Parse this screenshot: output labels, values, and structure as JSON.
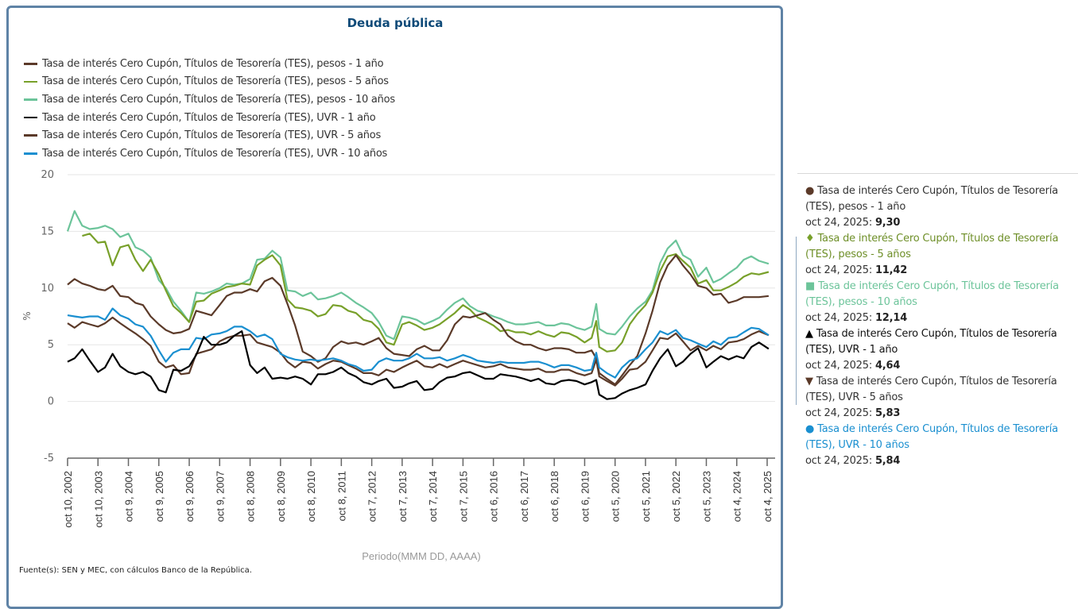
{
  "panel": {
    "title": "Deuda pública",
    "source": "Fuente(s): SEN y MEC, con cálculos Banco de la República."
  },
  "legend": [
    {
      "label": "Tasa de interés Cero Cupón, Títulos de Tesorería (TES), pesos - 1 año",
      "color": "#5b3a29"
    },
    {
      "label": "Tasa de interés Cero Cupón, Títulos de Tesorería (TES), pesos - 5 años",
      "color": "#78a02a"
    },
    {
      "label": "Tasa de interés Cero Cupón, Títulos de Tesorería (TES), pesos - 10 años",
      "color": "#6cc49a"
    },
    {
      "label": "Tasa de interés Cero Cupón, Títulos de Tesorería (TES), UVR - 1 año",
      "color": "#000000"
    },
    {
      "label": "Tasa de interés Cero Cupón, Títulos de Tesorería (TES), UVR - 5 años",
      "color": "#5b3a29"
    },
    {
      "label": "Tasa de interés Cero Cupón, Títulos de Tesorería (TES), UVR - 10 años",
      "color": "#1a8fd0"
    }
  ],
  "tooltip": {
    "items": [
      {
        "marker": "●",
        "name_line1": "Tasa de interés Cero Cupón, Títulos de Tesorería",
        "name_line2": "(TES), pesos - 1 año",
        "date": "oct 24, 2025:",
        "value": "9,30",
        "color": "#333333",
        "marker_color": "#5b3a29"
      },
      {
        "marker": "♦",
        "name_line1": "Tasa de interés Cero Cupón, Títulos de Tesorería",
        "name_line2": "(TES), pesos - 5 años",
        "date": "oct 24, 2025:",
        "value": "11,42",
        "color": "#6e8f28",
        "marker_color": "#78a02a"
      },
      {
        "marker": "■",
        "name_line1": "Tasa de interés Cero Cupón, Títulos de Tesorería",
        "name_line2": "(TES), pesos - 10 años",
        "date": "oct 24, 2025:",
        "value": "12,14",
        "color": "#6cc49a",
        "marker_color": "#6cc49a"
      },
      {
        "marker": "▲",
        "name_line1": "Tasa de interés Cero Cupón, Títulos de Tesorería",
        "name_line2": "(TES), UVR - 1 año",
        "date": "oct 24, 2025:",
        "value": "4,64",
        "color": "#111111",
        "marker_color": "#000000"
      },
      {
        "marker": "▼",
        "name_line1": "Tasa de interés Cero Cupón, Títulos de Tesorería",
        "name_line2": "(TES), UVR - 5 años",
        "date": "oct 24, 2025:",
        "value": "5,83",
        "color": "#333333",
        "marker_color": "#5b3a29"
      },
      {
        "marker": "●",
        "name_line1": "Tasa de interés Cero Cupón, Títulos de Tesorería",
        "name_line2": "(TES), UVR - 10 años",
        "date": "oct 24, 2025:",
        "value": "5,84",
        "color": "#1a8fd0",
        "marker_color": "#1a8fd0"
      }
    ]
  },
  "chart_data": {
    "type": "line",
    "title": "Deuda pública",
    "xlabel": "Periodo(MMM DD, AAAA)",
    "ylabel": "%",
    "ylim": [
      -5,
      20
    ],
    "yticks": [
      -5,
      0,
      5,
      10,
      15,
      20
    ],
    "grid": true,
    "legend_position": "top-left",
    "xlim": [
      2002.77,
      2025.82
    ],
    "xticks": [
      {
        "label": "oct 10, 2002",
        "x": 2002.77
      },
      {
        "label": "oct 10, 2003",
        "x": 2003.77
      },
      {
        "label": "oct 9, 2004",
        "x": 2004.77
      },
      {
        "label": "oct 9, 2005",
        "x": 2005.77
      },
      {
        "label": "oct 9, 2006",
        "x": 2006.77
      },
      {
        "label": "oct 9, 2007",
        "x": 2007.77
      },
      {
        "label": "oct 8, 2008",
        "x": 2008.77
      },
      {
        "label": "oct 8, 2009",
        "x": 2009.77
      },
      {
        "label": "oct 8, 2010",
        "x": 2010.77
      },
      {
        "label": "oct 8, 2011",
        "x": 2011.77
      },
      {
        "label": "oct 7, 2012",
        "x": 2012.77
      },
      {
        "label": "oct 7, 2013",
        "x": 2013.77
      },
      {
        "label": "oct 7, 2014",
        "x": 2014.77
      },
      {
        "label": "oct 7, 2015",
        "x": 2015.77
      },
      {
        "label": "oct 6, 2016",
        "x": 2016.77
      },
      {
        "label": "oct 6, 2017",
        "x": 2017.77
      },
      {
        "label": "oct 6, 2018",
        "x": 2018.77
      },
      {
        "label": "oct 6, 2019",
        "x": 2019.77
      },
      {
        "label": "oct 5, 2020",
        "x": 2020.77
      },
      {
        "label": "oct 5, 2021",
        "x": 2021.77
      },
      {
        "label": "oct 5, 2022",
        "x": 2022.77
      },
      {
        "label": "oct 5, 2023",
        "x": 2023.77
      },
      {
        "label": "oct 4, 2024",
        "x": 2024.77
      },
      {
        "label": "oct 4, 2025",
        "x": 2025.77
      }
    ],
    "x": [
      2002.77,
      2003.0,
      2003.25,
      2003.5,
      2003.77,
      2004.0,
      2004.25,
      2004.5,
      2004.77,
      2005.0,
      2005.25,
      2005.5,
      2005.77,
      2006.0,
      2006.25,
      2006.5,
      2006.77,
      2007.0,
      2007.25,
      2007.5,
      2007.77,
      2008.0,
      2008.25,
      2008.5,
      2008.77,
      2009.0,
      2009.25,
      2009.5,
      2009.77,
      2010.0,
      2010.25,
      2010.5,
      2010.77,
      2011.0,
      2011.25,
      2011.5,
      2011.77,
      2012.0,
      2012.25,
      2012.5,
      2012.77,
      2013.0,
      2013.25,
      2013.5,
      2013.77,
      2014.0,
      2014.25,
      2014.5,
      2014.77,
      2015.0,
      2015.25,
      2015.5,
      2015.77,
      2016.0,
      2016.25,
      2016.5,
      2016.77,
      2017.0,
      2017.25,
      2017.5,
      2017.77,
      2018.0,
      2018.25,
      2018.5,
      2018.77,
      2019.0,
      2019.25,
      2019.5,
      2019.77,
      2020.0,
      2020.15,
      2020.25,
      2020.5,
      2020.77,
      2021.0,
      2021.25,
      2021.5,
      2021.77,
      2022.0,
      2022.25,
      2022.5,
      2022.77,
      2023.0,
      2023.25,
      2023.5,
      2023.77,
      2024.0,
      2024.25,
      2024.5,
      2024.77,
      2025.0,
      2025.25,
      2025.5,
      2025.82
    ],
    "series": [
      {
        "name": "Tasa de interés Cero Cupón, Títulos de Tesorería (TES), pesos - 1 año",
        "color": "#5b3a29",
        "values": [
          10.3,
          10.8,
          10.4,
          10.2,
          9.9,
          9.8,
          10.2,
          9.3,
          9.2,
          8.7,
          8.5,
          7.5,
          6.8,
          6.3,
          6.0,
          6.1,
          6.4,
          8.0,
          7.8,
          7.6,
          8.5,
          9.3,
          9.6,
          9.6,
          9.9,
          9.7,
          10.6,
          10.9,
          10.2,
          8.6,
          6.7,
          4.4,
          4.0,
          3.5,
          3.8,
          4.8,
          5.3,
          5.1,
          5.2,
          5.0,
          5.3,
          5.6,
          4.7,
          4.2,
          4.1,
          4.0,
          4.6,
          4.9,
          4.5,
          4.5,
          5.4,
          6.8,
          7.5,
          7.4,
          7.6,
          7.8,
          7.2,
          6.8,
          5.8,
          5.3,
          5.0,
          5.0,
          4.7,
          4.5,
          4.7,
          4.7,
          4.6,
          4.3,
          4.3,
          4.5,
          3.8,
          2.5,
          2.0,
          1.5,
          2.3,
          3.2,
          4.0,
          6.0,
          8.0,
          10.5,
          12.0,
          12.9,
          12.0,
          11.2,
          10.2,
          10.0,
          9.4,
          9.5,
          8.7,
          8.9,
          9.2,
          9.2,
          9.2,
          9.3
        ]
      },
      {
        "name": "Tasa de interés Cero Cupón, Títulos de Tesorería (TES), pesos - 5 años",
        "color": "#78a02a",
        "values": [
          null,
          null,
          14.6,
          14.8,
          14.0,
          14.1,
          12.0,
          13.6,
          13.8,
          12.5,
          11.5,
          12.5,
          11.2,
          9.8,
          8.4,
          7.8,
          7.0,
          8.8,
          8.9,
          9.5,
          9.8,
          10.1,
          10.2,
          10.4,
          10.3,
          12.0,
          12.5,
          12.9,
          12.0,
          9.0,
          8.3,
          8.2,
          8.0,
          7.5,
          7.7,
          8.5,
          8.4,
          8.0,
          7.8,
          7.2,
          7.0,
          6.4,
          5.2,
          5.0,
          6.8,
          7.0,
          6.7,
          6.3,
          6.5,
          6.8,
          7.3,
          7.8,
          8.5,
          8.1,
          7.4,
          7.1,
          6.7,
          6.2,
          6.3,
          6.1,
          6.1,
          5.9,
          6.2,
          5.9,
          5.7,
          6.1,
          6.0,
          5.7,
          5.2,
          5.6,
          7.1,
          4.8,
          4.4,
          4.5,
          5.2,
          6.8,
          7.7,
          8.5,
          9.6,
          11.5,
          12.8,
          13.0,
          12.4,
          11.8,
          10.4,
          10.7,
          9.8,
          9.8,
          10.1,
          10.5,
          11.0,
          11.3,
          11.2,
          11.42
        ]
      },
      {
        "name": "Tasa de interés Cero Cupón, Títulos de Tesorería (TES), pesos - 10 años",
        "color": "#6cc49a",
        "values": [
          15.0,
          16.8,
          15.5,
          15.2,
          15.3,
          15.5,
          15.2,
          14.5,
          14.8,
          13.6,
          13.3,
          12.7,
          10.7,
          10.0,
          8.8,
          8.0,
          7.0,
          9.6,
          9.5,
          9.7,
          10.0,
          10.4,
          10.3,
          10.4,
          10.8,
          12.5,
          12.6,
          13.3,
          12.7,
          9.8,
          9.7,
          9.3,
          9.6,
          9.0,
          9.1,
          9.3,
          9.6,
          9.2,
          8.7,
          8.3,
          7.8,
          7.0,
          5.8,
          5.5,
          7.5,
          7.4,
          7.2,
          6.8,
          7.1,
          7.4,
          8.1,
          8.7,
          9.1,
          8.4,
          8.0,
          7.8,
          7.5,
          7.3,
          7.0,
          6.8,
          6.8,
          6.9,
          7.0,
          6.7,
          6.7,
          6.9,
          6.8,
          6.5,
          6.3,
          6.6,
          8.6,
          6.4,
          6.0,
          5.9,
          6.6,
          7.5,
          8.2,
          8.8,
          9.8,
          12.2,
          13.5,
          14.2,
          12.9,
          12.5,
          11.0,
          11.8,
          10.5,
          10.8,
          11.3,
          11.8,
          12.5,
          12.8,
          12.4,
          12.14
        ]
      },
      {
        "name": "Tasa de interés Cero Cupón, Títulos de Tesorería (TES), UVR - 1 año",
        "color": "#000000",
        "values": [
          3.5,
          3.8,
          4.6,
          3.6,
          2.6,
          3.0,
          4.2,
          3.1,
          2.6,
          2.4,
          2.6,
          2.2,
          1.0,
          0.8,
          2.8,
          2.7,
          3.1,
          4.1,
          5.7,
          5.0,
          5.0,
          5.2,
          5.8,
          6.2,
          3.2,
          2.5,
          3.0,
          2.0,
          2.1,
          2.0,
          2.2,
          2.0,
          1.5,
          2.4,
          2.4,
          2.6,
          3.0,
          2.5,
          2.2,
          1.7,
          1.5,
          1.8,
          2.0,
          1.2,
          1.3,
          1.6,
          1.8,
          1.0,
          1.1,
          1.7,
          2.1,
          2.2,
          2.5,
          2.6,
          2.3,
          2.0,
          2.0,
          2.4,
          2.3,
          2.2,
          2.0,
          1.8,
          2.0,
          1.6,
          1.5,
          1.8,
          1.9,
          1.8,
          1.5,
          1.7,
          1.9,
          0.6,
          0.2,
          0.3,
          0.7,
          1.0,
          1.2,
          1.5,
          2.7,
          3.8,
          4.6,
          3.1,
          3.5,
          4.2,
          4.7,
          3.0,
          3.5,
          4.0,
          3.7,
          4.0,
          3.8,
          4.8,
          5.2,
          4.64
        ]
      },
      {
        "name": "Tasa de interés Cero Cupón, Títulos de Tesorería (TES), UVR - 5 años",
        "color": "#5b3a29",
        "values": [
          6.9,
          6.5,
          7.0,
          6.8,
          6.6,
          6.9,
          7.4,
          6.9,
          6.4,
          6.0,
          5.5,
          4.9,
          3.5,
          3.0,
          3.2,
          2.4,
          2.5,
          4.2,
          4.4,
          4.6,
          5.3,
          5.6,
          5.8,
          5.8,
          5.9,
          5.2,
          5.0,
          4.8,
          4.3,
          3.5,
          3.0,
          3.5,
          3.4,
          2.9,
          3.3,
          3.6,
          3.5,
          3.2,
          2.9,
          2.5,
          2.5,
          2.3,
          2.8,
          2.6,
          3.0,
          3.3,
          3.6,
          3.1,
          3.0,
          3.3,
          3.0,
          3.3,
          3.6,
          3.4,
          3.2,
          3.0,
          3.1,
          3.3,
          3.0,
          2.9,
          2.8,
          2.8,
          2.9,
          2.6,
          2.6,
          2.8,
          2.8,
          2.5,
          2.3,
          2.5,
          3.7,
          2.2,
          1.8,
          1.4,
          2.0,
          2.8,
          2.9,
          3.5,
          4.5,
          5.6,
          5.5,
          6.0,
          5.3,
          4.5,
          4.9,
          4.5,
          4.9,
          4.6,
          5.2,
          5.3,
          5.5,
          5.9,
          6.2,
          5.83
        ]
      },
      {
        "name": "Tasa de interés Cero Cupón, Títulos de Tesorería (TES), UVR - 10 años",
        "color": "#1a8fd0",
        "values": [
          7.6,
          7.5,
          7.4,
          7.5,
          7.5,
          7.2,
          8.2,
          7.6,
          7.3,
          6.8,
          6.6,
          5.8,
          4.5,
          3.5,
          4.3,
          4.6,
          4.6,
          5.6,
          5.5,
          5.9,
          6.0,
          6.2,
          6.6,
          6.6,
          6.2,
          5.7,
          5.9,
          5.5,
          4.2,
          3.9,
          3.7,
          3.6,
          3.7,
          3.6,
          3.7,
          3.8,
          3.6,
          3.3,
          3.1,
          2.7,
          2.8,
          3.5,
          3.8,
          3.6,
          3.6,
          3.8,
          4.2,
          3.8,
          3.8,
          3.9,
          3.6,
          3.8,
          4.1,
          3.9,
          3.6,
          3.5,
          3.4,
          3.5,
          3.4,
          3.4,
          3.4,
          3.5,
          3.5,
          3.3,
          3.0,
          3.2,
          3.2,
          3.0,
          2.7,
          2.8,
          4.3,
          3.0,
          2.5,
          2.1,
          3.0,
          3.6,
          3.8,
          4.6,
          5.2,
          6.2,
          5.9,
          6.3,
          5.6,
          5.4,
          5.1,
          4.8,
          5.3,
          5.0,
          5.6,
          5.7,
          6.1,
          6.5,
          6.4,
          5.84
        ]
      }
    ]
  }
}
